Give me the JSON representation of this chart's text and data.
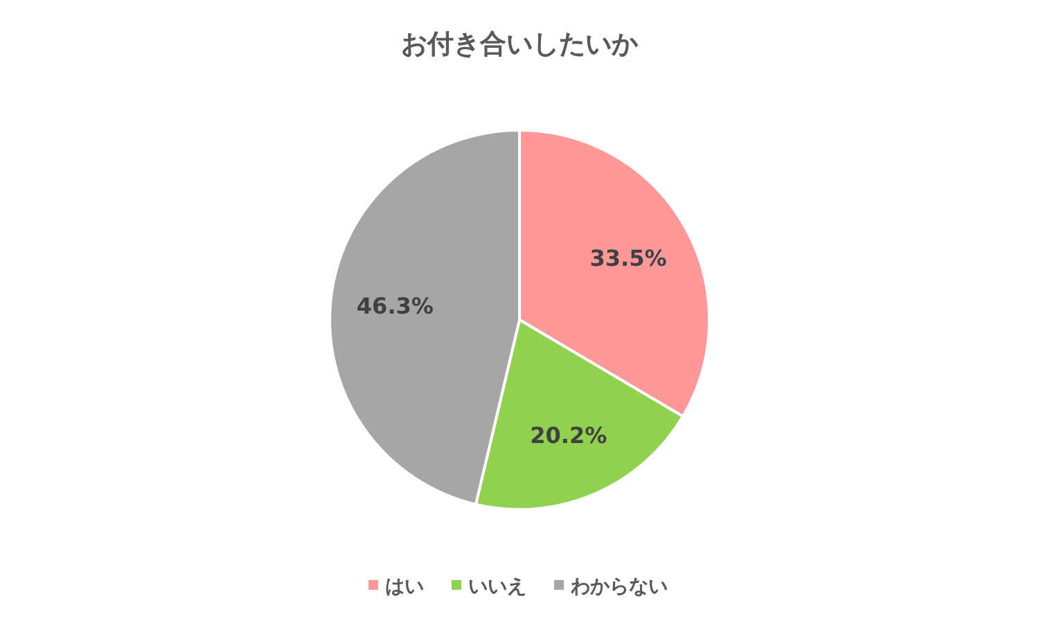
{
  "chart_data": {
    "type": "pie",
    "title": "お付き合いしたいか",
    "categories": [
      "はい",
      "いいえ",
      "わからない"
    ],
    "values": [
      33.5,
      20.2,
      46.3
    ],
    "colors": [
      "#ff9999",
      "#92d050",
      "#a6a6a6"
    ],
    "value_labels": [
      "33.5%",
      "20.2%",
      "46.3%"
    ],
    "legend": "bottom"
  }
}
